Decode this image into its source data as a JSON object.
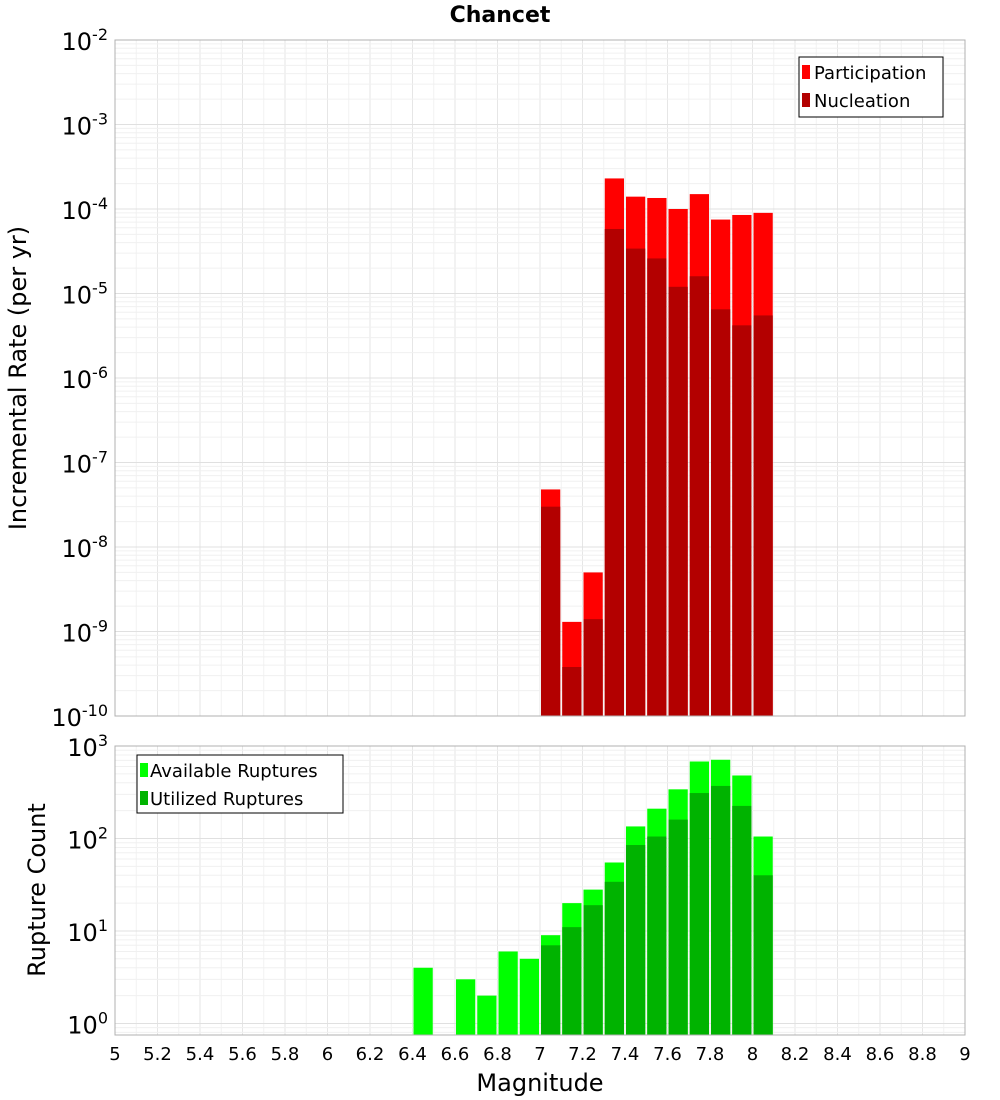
{
  "chart_data": [
    {
      "type": "bar",
      "title": "Chancet",
      "ylabel": "Incremental Rate (per yr)",
      "y_scale": "log",
      "ylim": [
        1e-10,
        0.01
      ],
      "xlim": [
        5,
        9
      ],
      "bar_width": 0.1,
      "x_ticks": [],
      "y_ticks": [
        {
          "base": "10",
          "exp": "-10"
        },
        {
          "base": "10",
          "exp": "-9"
        },
        {
          "base": "10",
          "exp": "-8"
        },
        {
          "base": "10",
          "exp": "-7"
        },
        {
          "base": "10",
          "exp": "-6"
        },
        {
          "base": "10",
          "exp": "-5"
        },
        {
          "base": "10",
          "exp": "-4"
        },
        {
          "base": "10",
          "exp": "-3"
        },
        {
          "base": "10",
          "exp": "-2"
        }
      ],
      "legend_position": "top-right",
      "x": [
        7.05,
        7.15,
        7.25,
        7.35,
        7.45,
        7.55,
        7.65,
        7.75,
        7.85,
        7.95,
        8.05
      ],
      "series": [
        {
          "name": "Participation",
          "color": "#ff0000",
          "values": [
            4.8e-08,
            1.3e-09,
            5e-09,
            0.00023,
            0.00014,
            0.000135,
            0.0001,
            0.00015,
            7.5e-05,
            8.5e-05,
            9e-05
          ]
        },
        {
          "name": "Nucleation",
          "color": "#b30000",
          "values": [
            3e-08,
            3.8e-10,
            1.4e-09,
            5.8e-05,
            3.4e-05,
            2.6e-05,
            1.2e-05,
            1.6e-05,
            6.5e-06,
            4.2e-06,
            5.5e-06
          ]
        }
      ]
    },
    {
      "type": "bar",
      "xlabel": "Magnitude",
      "ylabel": "Rupture Count",
      "y_scale": "log",
      "ylim": [
        0.75,
        1000
      ],
      "xlim": [
        5,
        9
      ],
      "bar_width": 0.1,
      "x_ticks": [
        "5",
        "5.2",
        "5.4",
        "5.6",
        "5.8",
        "6",
        "6.2",
        "6.4",
        "6.6",
        "6.8",
        "7",
        "7.2",
        "7.4",
        "7.6",
        "7.8",
        "8",
        "8.2",
        "8.4",
        "8.6",
        "8.8",
        "9"
      ],
      "y_ticks": [
        {
          "base": "10",
          "exp": "0"
        },
        {
          "base": "10",
          "exp": "1"
        },
        {
          "base": "10",
          "exp": "2"
        },
        {
          "base": "10",
          "exp": "3"
        }
      ],
      "legend_position": "top-left",
      "x": [
        6.45,
        6.65,
        6.75,
        6.85,
        6.95,
        7.05,
        7.15,
        7.25,
        7.35,
        7.45,
        7.55,
        7.65,
        7.75,
        7.85,
        7.95,
        8.05
      ],
      "series": [
        {
          "name": "Available Ruptures",
          "color": "#00ff00",
          "values": [
            4,
            3,
            2,
            6,
            5,
            9,
            20,
            28,
            55,
            135,
            210,
            340,
            680,
            710,
            480,
            105
          ]
        },
        {
          "name": "Utilized Ruptures",
          "color": "#00b300",
          "values": [
            null,
            null,
            null,
            null,
            null,
            7,
            11,
            19,
            34,
            85,
            105,
            160,
            310,
            370,
            225,
            40
          ]
        }
      ]
    }
  ]
}
